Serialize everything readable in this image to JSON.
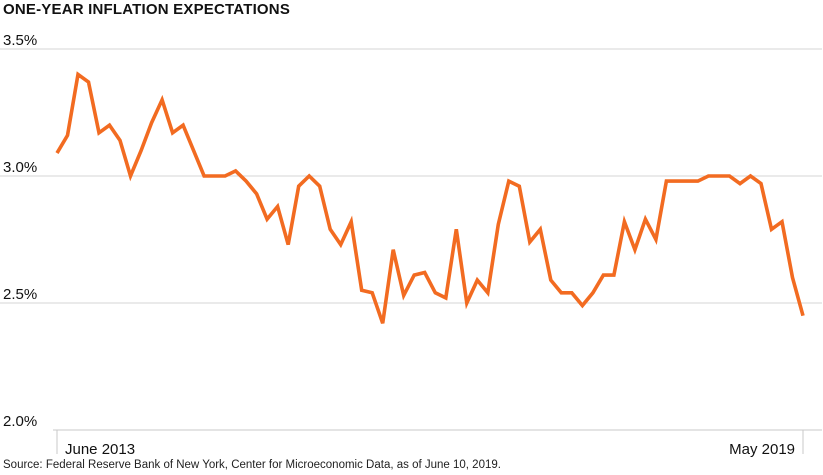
{
  "chart_data": {
    "type": "line",
    "title": "ONE-YEAR INFLATION EXPECTATIONS",
    "source": "Source: Federal Reserve Bank of New York, Center for Microeconomic Data, as of June 10, 2019.",
    "ylim": [
      2.0,
      3.5
    ],
    "yticks": [
      {
        "value": 3.5,
        "label": "3.5%"
      },
      {
        "value": 3.0,
        "label": "3.0%"
      },
      {
        "value": 2.5,
        "label": "2.5%"
      },
      {
        "value": 2.0,
        "label": "2.0%"
      }
    ],
    "xlabels": [
      {
        "index": 0,
        "label": "June 2013"
      },
      {
        "index": 71,
        "label": "May 2019"
      }
    ],
    "grid": true,
    "line_color": "#F26B21",
    "series": [
      {
        "values": [
          3.09,
          3.16,
          3.4,
          3.37,
          3.17,
          3.2,
          3.14,
          3.0,
          3.1,
          3.21,
          3.3,
          3.17,
          3.2,
          3.1,
          3.0,
          3.0,
          3.0,
          3.02,
          2.98,
          2.93,
          2.83,
          2.88,
          2.73,
          2.96,
          3.0,
          2.96,
          2.79,
          2.73,
          2.82,
          2.55,
          2.54,
          2.42,
          2.71,
          2.53,
          2.61,
          2.62,
          2.54,
          2.52,
          2.79,
          2.5,
          2.59,
          2.54,
          2.81,
          2.98,
          2.96,
          2.74,
          2.79,
          2.59,
          2.54,
          2.54,
          2.49,
          2.54,
          2.61,
          2.61,
          2.82,
          2.71,
          2.83,
          2.75,
          2.98,
          2.98,
          2.98,
          2.98,
          3.0,
          3.0,
          3.0,
          2.97,
          3.0,
          2.97,
          2.79,
          2.82,
          2.6,
          2.45
        ]
      }
    ]
  }
}
